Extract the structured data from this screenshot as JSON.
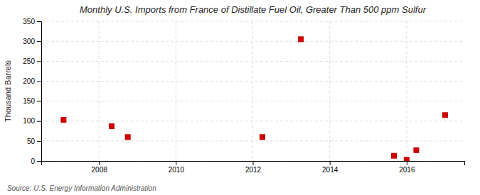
{
  "chart_data": {
    "type": "scatter",
    "title": "Monthly U.S. Imports from France of Distillate Fuel Oil, Greater Than 500 ppm Sulfur",
    "ylabel": "Thousand Barrels",
    "source": "Source: U.S. Energy Information Administration",
    "x": [
      2007.08,
      2008.33,
      2008.75,
      2012.25,
      2013.25,
      2015.67,
      2016.0,
      2016.25,
      2017.0
    ],
    "values": [
      103,
      87,
      60,
      60,
      305,
      13,
      3,
      27,
      115
    ],
    "color": "#cc0000",
    "marker": "square",
    "xlim": [
      2006.5,
      2017.5
    ],
    "ylim": [
      0,
      350
    ],
    "xticks": [
      2008,
      2010,
      2012,
      2014,
      2016
    ],
    "yticks": [
      0,
      50,
      100,
      150,
      200,
      250,
      300,
      350
    ],
    "grid": true
  }
}
